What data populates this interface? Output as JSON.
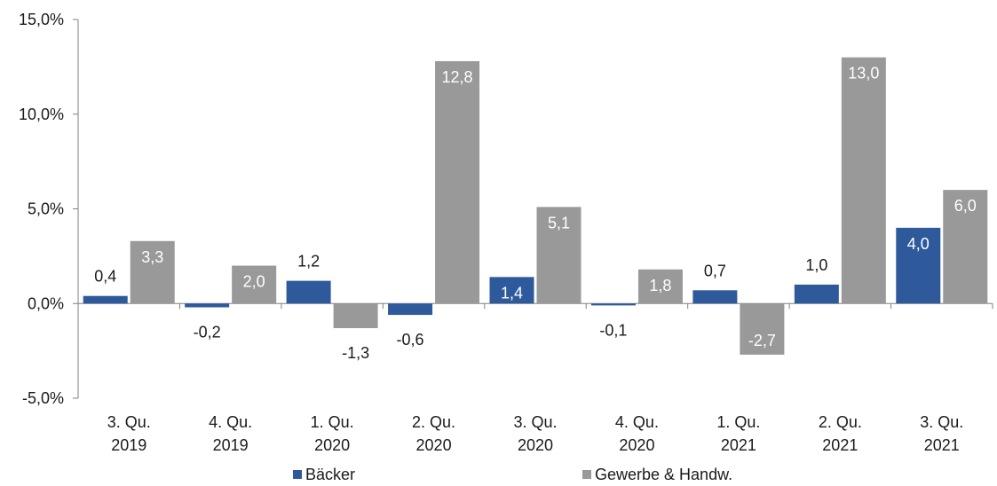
{
  "chart_data": {
    "type": "bar",
    "categories": [
      [
        "3. Qu.",
        "2019"
      ],
      [
        "4. Qu.",
        "2019"
      ],
      [
        "1. Qu.",
        "2020"
      ],
      [
        "2. Qu.",
        "2020"
      ],
      [
        "3. Qu.",
        "2020"
      ],
      [
        "4. Qu.",
        "2020"
      ],
      [
        "1. Qu.",
        "2021"
      ],
      [
        "2. Qu.",
        "2021"
      ],
      [
        "3. Qu.",
        "2021"
      ]
    ],
    "series": [
      {
        "name": "Bäcker",
        "color": "#2e5a9c",
        "values": [
          0.4,
          -0.2,
          1.2,
          -0.6,
          1.4,
          -0.1,
          0.7,
          1.0,
          4.0
        ],
        "labels": [
          "0,4",
          "-0,2",
          "1,2",
          "-0,6",
          "1,4",
          "-0,1",
          "0,7",
          "1,0",
          "4,0"
        ]
      },
      {
        "name": "Gewerbe & Handw.",
        "color": "#999999",
        "values": [
          3.3,
          2.0,
          -1.3,
          12.8,
          5.1,
          1.8,
          -2.7,
          13.0,
          6.0
        ],
        "labels": [
          "3,3",
          "2,0",
          "-1,3",
          "12,8",
          "5,1",
          "1,8",
          "-2,7",
          "13,0",
          "6,0"
        ]
      }
    ],
    "ylim": [
      -5,
      15
    ],
    "yticks": [
      -5,
      0,
      5,
      10,
      15
    ],
    "ytick_labels": [
      "-5,0%",
      "0,0%",
      "5,0%",
      "10,0%",
      "15,0%"
    ],
    "title": "",
    "xlabel": "",
    "ylabel": "",
    "grid": false,
    "legend_position": "bottom"
  }
}
